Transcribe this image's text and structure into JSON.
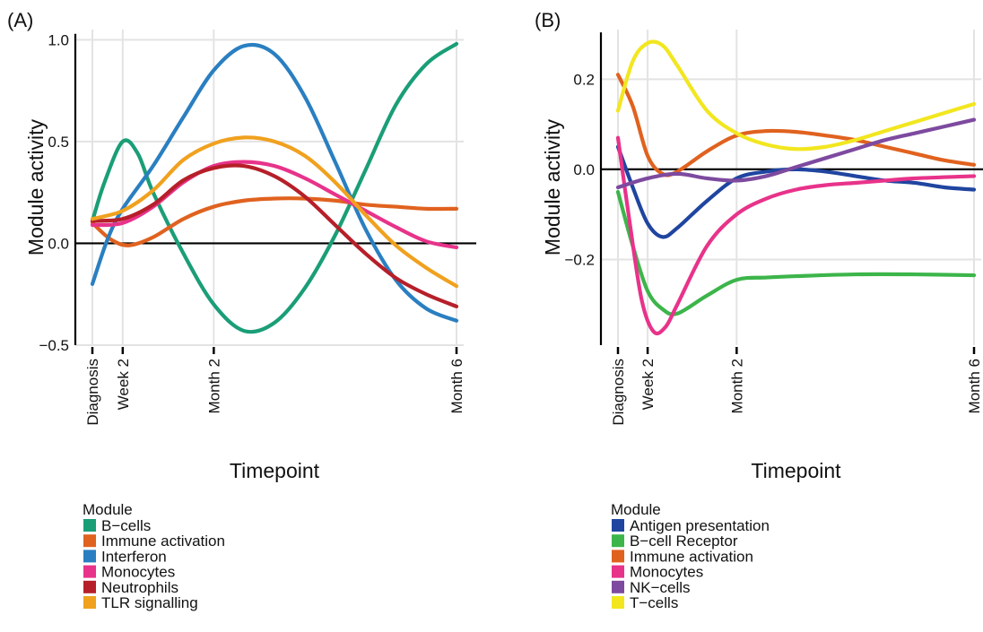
{
  "chart_data": [
    {
      "panel_label": "(A)",
      "type": "line",
      "xlabel": "Timepoint",
      "ylabel": "Module activity",
      "x_ticks": [
        "Diagnosis",
        "Week 2",
        "Month 2",
        "Month 6"
      ],
      "x_tick_positions": [
        0,
        0.5,
        2,
        6
      ],
      "ylim": [
        -0.5,
        1.05
      ],
      "y_ticks": [
        {
          "value": -0.5,
          "label": "−0.5"
        },
        {
          "value": 0.0,
          "label": "0.0"
        },
        {
          "value": 0.5,
          "label": "0.5"
        },
        {
          "value": 1.0,
          "label": "1.0"
        }
      ],
      "grid": true,
      "zero_line": true,
      "legend_title": "Module",
      "legend_position": "bottom-left",
      "series": [
        {
          "name": "B−cells",
          "color": "#1a9e77",
          "x": [
            0,
            0.2,
            0.5,
            0.75,
            1,
            1.5,
            2,
            2.5,
            3,
            3.5,
            4,
            4.5,
            5,
            5.5,
            6
          ],
          "y": [
            0.11,
            0.3,
            0.5,
            0.44,
            0.25,
            -0.05,
            -0.3,
            -0.43,
            -0.39,
            -0.22,
            0.04,
            0.36,
            0.68,
            0.88,
            0.98
          ]
        },
        {
          "name": "Immune activation",
          "color": "#e0621f",
          "x": [
            0,
            0.3,
            0.6,
            1,
            1.5,
            2,
            2.5,
            3,
            3.5,
            4,
            4.5,
            5,
            5.5,
            6
          ],
          "y": [
            0.1,
            0.02,
            -0.01,
            0.03,
            0.12,
            0.18,
            0.21,
            0.22,
            0.22,
            0.21,
            0.19,
            0.18,
            0.17,
            0.17
          ]
        },
        {
          "name": "Interferon",
          "color": "#2a7fc1",
          "x": [
            0,
            0.25,
            0.5,
            1,
            1.5,
            2,
            2.5,
            3,
            3.5,
            4,
            4.5,
            5,
            5.5,
            6
          ],
          "y": [
            -0.2,
            0.02,
            0.17,
            0.38,
            0.62,
            0.85,
            0.97,
            0.93,
            0.72,
            0.4,
            0.07,
            -0.18,
            -0.32,
            -0.38
          ]
        },
        {
          "name": "Monocytes",
          "color": "#e8338a",
          "x": [
            0,
            0.5,
            1,
            1.5,
            2,
            2.5,
            3,
            3.5,
            4,
            4.5,
            5,
            5.5,
            6
          ],
          "y": [
            0.09,
            0.1,
            0.18,
            0.3,
            0.38,
            0.4,
            0.38,
            0.32,
            0.24,
            0.16,
            0.08,
            0.01,
            -0.02
          ]
        },
        {
          "name": "Neutrophils",
          "color": "#b61f29",
          "x": [
            0,
            0.5,
            1,
            1.5,
            2,
            2.5,
            3,
            3.5,
            4,
            4.5,
            5,
            5.5,
            6
          ],
          "y": [
            0.11,
            0.12,
            0.19,
            0.31,
            0.37,
            0.38,
            0.33,
            0.23,
            0.09,
            -0.05,
            -0.17,
            -0.25,
            -0.31
          ]
        },
        {
          "name": "TLR signalling",
          "color": "#f0a11e",
          "x": [
            0,
            0.5,
            1,
            1.5,
            2,
            2.5,
            3,
            3.5,
            4,
            4.5,
            5,
            5.5,
            6
          ],
          "y": [
            0.12,
            0.16,
            0.26,
            0.41,
            0.49,
            0.52,
            0.5,
            0.43,
            0.3,
            0.14,
            -0.01,
            -0.12,
            -0.21
          ]
        }
      ]
    },
    {
      "panel_label": "(B)",
      "type": "line",
      "xlabel": "Timepoint",
      "ylabel": "Module activity",
      "x_ticks": [
        "Diagnosis",
        "Week 2",
        "Month 2",
        "Month 6"
      ],
      "x_tick_positions": [
        0,
        0.5,
        2,
        6
      ],
      "ylim": [
        -0.39,
        0.31
      ],
      "y_ticks": [
        {
          "value": -0.2,
          "label": "−0.2"
        },
        {
          "value": 0.0,
          "label": "0.0"
        },
        {
          "value": 0.2,
          "label": "0.2"
        }
      ],
      "grid": true,
      "zero_line": true,
      "legend_title": "Module",
      "legend_position": "bottom-left",
      "series": [
        {
          "name": "Antigen presentation",
          "color": "#1f45a0",
          "x": [
            0,
            0.25,
            0.5,
            0.75,
            1,
            1.5,
            2,
            2.5,
            3,
            3.5,
            4,
            4.5,
            5,
            5.5,
            6
          ],
          "y": [
            0.05,
            -0.04,
            -0.12,
            -0.15,
            -0.13,
            -0.07,
            -0.02,
            -0.005,
            0.0,
            -0.005,
            -0.015,
            -0.025,
            -0.03,
            -0.04,
            -0.045
          ]
        },
        {
          "name": "B−cell Receptor",
          "color": "#3cb54a",
          "x": [
            0,
            0.25,
            0.5,
            0.75,
            1,
            1.5,
            2,
            2.5,
            3,
            4,
            5,
            6
          ],
          "y": [
            -0.05,
            -0.17,
            -0.27,
            -0.31,
            -0.32,
            -0.28,
            -0.245,
            -0.24,
            -0.237,
            -0.233,
            -0.233,
            -0.235
          ]
        },
        {
          "name": "Immune activation",
          "color": "#e0621f",
          "x": [
            0,
            0.25,
            0.5,
            0.75,
            1,
            1.5,
            2,
            2.5,
            3,
            3.5,
            4,
            4.5,
            5,
            5.5,
            6
          ],
          "y": [
            0.21,
            0.14,
            0.03,
            -0.01,
            -0.005,
            0.04,
            0.075,
            0.085,
            0.083,
            0.075,
            0.065,
            0.05,
            0.035,
            0.02,
            0.01
          ]
        },
        {
          "name": "Monocytes",
          "color": "#e8338a",
          "x": [
            0,
            0.2,
            0.4,
            0.6,
            0.8,
            1,
            1.5,
            2,
            2.5,
            3,
            3.5,
            4,
            4.5,
            5,
            6
          ],
          "y": [
            0.07,
            -0.12,
            -0.29,
            -0.36,
            -0.35,
            -0.3,
            -0.17,
            -0.1,
            -0.065,
            -0.045,
            -0.035,
            -0.03,
            -0.025,
            -0.02,
            -0.015
          ]
        },
        {
          "name": "NK−cells",
          "color": "#7d4a9f",
          "x": [
            0,
            0.5,
            1,
            1.5,
            2,
            2.5,
            3,
            3.5,
            4,
            4.5,
            5,
            5.5,
            6
          ],
          "y": [
            -0.04,
            -0.02,
            -0.01,
            -0.02,
            -0.025,
            -0.015,
            0.005,
            0.025,
            0.045,
            0.065,
            0.08,
            0.095,
            0.11
          ]
        },
        {
          "name": "T−cells",
          "color": "#f2e61f",
          "x": [
            0,
            0.25,
            0.5,
            0.75,
            1,
            1.5,
            2,
            2.5,
            3,
            3.5,
            4,
            4.5,
            5,
            5.5,
            6
          ],
          "y": [
            0.13,
            0.24,
            0.28,
            0.275,
            0.23,
            0.13,
            0.08,
            0.055,
            0.045,
            0.05,
            0.065,
            0.085,
            0.105,
            0.125,
            0.145
          ]
        }
      ]
    }
  ]
}
